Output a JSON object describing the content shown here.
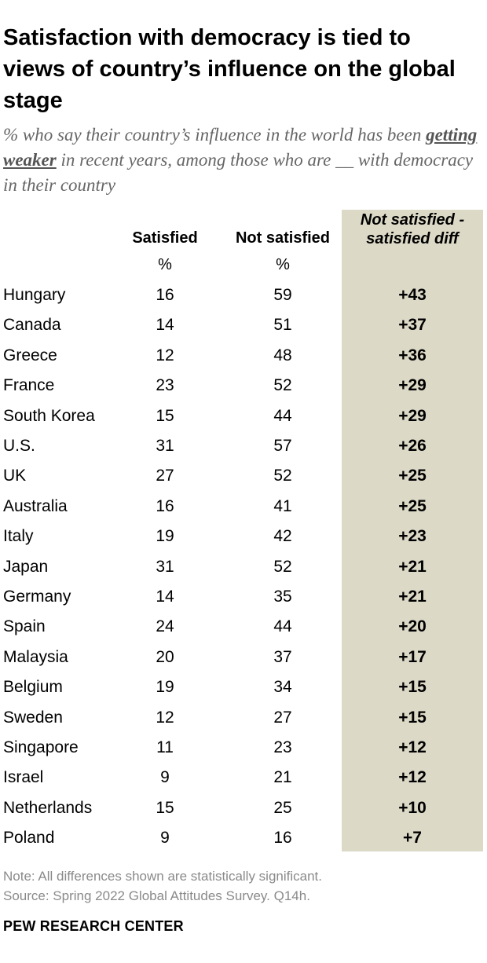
{
  "title": "Satisfaction with democracy is tied to views of country’s influence on the global stage",
  "subtitle": {
    "before": "% who say their country’s influence in the world has been ",
    "emphasis": "getting weaker",
    "after": " in recent years, among those who are __ with democracy in their country"
  },
  "colors": {
    "diff_column_bg": "#dcd9c7",
    "subtitle": "#666666",
    "note": "#8a8a8a"
  },
  "chart_data": {
    "type": "table",
    "columns": [
      {
        "label": "Satisfied",
        "unit": "%"
      },
      {
        "label": "Not satisfied",
        "unit": "%"
      },
      {
        "label": "Not satisfied - satisfied diff",
        "unit": ""
      }
    ],
    "rows": [
      {
        "country": "Hungary",
        "satisfied": 16,
        "not_satisfied": 59,
        "diff": "+43"
      },
      {
        "country": "Canada",
        "satisfied": 14,
        "not_satisfied": 51,
        "diff": "+37"
      },
      {
        "country": "Greece",
        "satisfied": 12,
        "not_satisfied": 48,
        "diff": "+36"
      },
      {
        "country": "France",
        "satisfied": 23,
        "not_satisfied": 52,
        "diff": "+29"
      },
      {
        "country": "South Korea",
        "satisfied": 15,
        "not_satisfied": 44,
        "diff": "+29"
      },
      {
        "country": "U.S.",
        "satisfied": 31,
        "not_satisfied": 57,
        "diff": "+26"
      },
      {
        "country": "UK",
        "satisfied": 27,
        "not_satisfied": 52,
        "diff": "+25"
      },
      {
        "country": "Australia",
        "satisfied": 16,
        "not_satisfied": 41,
        "diff": "+25"
      },
      {
        "country": "Italy",
        "satisfied": 19,
        "not_satisfied": 42,
        "diff": "+23"
      },
      {
        "country": "Japan",
        "satisfied": 31,
        "not_satisfied": 52,
        "diff": "+21"
      },
      {
        "country": "Germany",
        "satisfied": 14,
        "not_satisfied": 35,
        "diff": "+21"
      },
      {
        "country": "Spain",
        "satisfied": 24,
        "not_satisfied": 44,
        "diff": "+20"
      },
      {
        "country": "Malaysia",
        "satisfied": 20,
        "not_satisfied": 37,
        "diff": "+17"
      },
      {
        "country": "Belgium",
        "satisfied": 19,
        "not_satisfied": 34,
        "diff": "+15"
      },
      {
        "country": "Sweden",
        "satisfied": 12,
        "not_satisfied": 27,
        "diff": "+15"
      },
      {
        "country": "Singapore",
        "satisfied": 11,
        "not_satisfied": 23,
        "diff": "+12"
      },
      {
        "country": "Israel",
        "satisfied": 9,
        "not_satisfied": 21,
        "diff": "+12"
      },
      {
        "country": "Netherlands",
        "satisfied": 15,
        "not_satisfied": 25,
        "diff": "+10"
      },
      {
        "country": "Poland",
        "satisfied": 9,
        "not_satisfied": 16,
        "diff": "+7"
      }
    ]
  },
  "note": "Note: All differences shown are statistically significant.",
  "source": "Source: Spring 2022 Global Attitudes Survey. Q14h.",
  "brand": "PEW RESEARCH CENTER"
}
